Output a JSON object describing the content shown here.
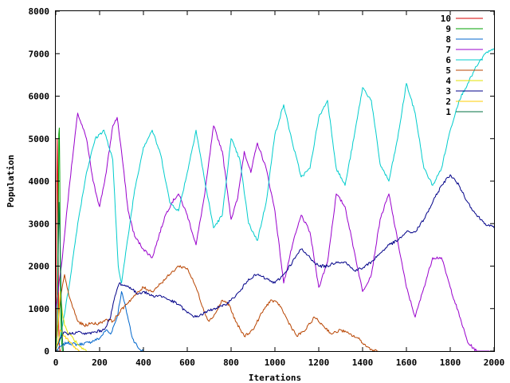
{
  "chart_data": {
    "type": "line",
    "title": "",
    "xlabel": "Iterations",
    "ylabel": "Population",
    "xlim": [
      0,
      2000
    ],
    "ylim": [
      0,
      8000
    ],
    "xticks": [
      0,
      200,
      400,
      600,
      800,
      1000,
      1200,
      1400,
      1600,
      1800,
      2000
    ],
    "yticks": [
      0,
      1000,
      2000,
      3000,
      4000,
      5000,
      6000,
      7000,
      8000
    ],
    "grid": false,
    "legend_position": "top-right",
    "series": [
      {
        "name": "10",
        "color": "#d40000",
        "x": [
          0,
          2,
          4,
          6,
          8,
          10,
          12,
          14,
          16,
          18,
          22
        ],
        "y": [
          300,
          1800,
          3800,
          5000,
          4300,
          2800,
          1400,
          500,
          150,
          40,
          0
        ]
      },
      {
        "name": "9",
        "color": "#00a000",
        "x": [
          0,
          4,
          8,
          12,
          14,
          16,
          18,
          20,
          22,
          26,
          30
        ],
        "y": [
          100,
          400,
          1500,
          3500,
          5100,
          5250,
          4200,
          2600,
          1100,
          250,
          0
        ]
      },
      {
        "name": "8",
        "color": "#0066cc",
        "x": [
          0,
          20,
          50,
          100,
          150,
          200,
          230,
          250,
          280,
          300,
          320,
          350,
          380,
          400
        ],
        "y": [
          0,
          100,
          200,
          150,
          200,
          300,
          500,
          400,
          800,
          1400,
          1000,
          300,
          50,
          0
        ]
      },
      {
        "name": "7",
        "color": "#9900cc",
        "x": [
          0,
          30,
          60,
          100,
          140,
          170,
          200,
          230,
          260,
          280,
          300,
          330,
          360,
          400,
          440,
          470,
          500,
          530,
          560,
          600,
          640,
          680,
          720,
          760,
          800,
          830,
          860,
          890,
          920,
          960,
          1000,
          1040,
          1080,
          1120,
          1160,
          1200,
          1240,
          1280,
          1320,
          1360,
          1400,
          1440,
          1480,
          1520,
          1560,
          1600,
          1640,
          1680,
          1720,
          1760,
          1800,
          1850,
          1880,
          1920,
          1950,
          1980
        ],
        "y": [
          1000,
          2200,
          3800,
          5600,
          5000,
          4000,
          3400,
          4200,
          5300,
          5500,
          4700,
          3300,
          2700,
          2400,
          2200,
          2700,
          3200,
          3500,
          3700,
          3200,
          2500,
          3700,
          5300,
          4700,
          3100,
          3600,
          4700,
          4200,
          4900,
          4300,
          3300,
          1600,
          2500,
          3200,
          2800,
          1500,
          2100,
          3700,
          3400,
          2400,
          1400,
          1800,
          3100,
          3700,
          2600,
          1500,
          800,
          1500,
          2200,
          2200,
          1500,
          700,
          200,
          0,
          0,
          0
        ]
      },
      {
        "name": "6",
        "color": "#00cccc",
        "x": [
          0,
          20,
          60,
          100,
          140,
          180,
          220,
          260,
          285,
          300,
          330,
          360,
          400,
          440,
          480,
          520,
          560,
          600,
          640,
          680,
          720,
          760,
          800,
          840,
          880,
          920,
          960,
          1000,
          1040,
          1080,
          1120,
          1160,
          1200,
          1240,
          1280,
          1320,
          1360,
          1400,
          1440,
          1480,
          1520,
          1560,
          1600,
          1640,
          1680,
          1720,
          1760,
          1800,
          1840,
          1880,
          1920,
          1960,
          2000
        ],
        "y": [
          0,
          300,
          1500,
          3000,
          4200,
          5000,
          5200,
          4500,
          2000,
          1600,
          2700,
          3800,
          4800,
          5200,
          4600,
          3500,
          3300,
          4200,
          5200,
          4000,
          2900,
          3200,
          5000,
          4500,
          3000,
          2600,
          3500,
          5100,
          5800,
          4900,
          4100,
          4300,
          5500,
          5900,
          4300,
          3900,
          5000,
          6200,
          5900,
          4400,
          4000,
          5000,
          6300,
          5600,
          4300,
          3900,
          4300,
          5200,
          5900,
          6300,
          6700,
          7000,
          7100
        ]
      },
      {
        "name": "5",
        "color": "#b84400",
        "x": [
          0,
          20,
          40,
          60,
          80,
          100,
          130,
          160,
          200,
          230,
          260,
          290,
          320,
          360,
          400,
          440,
          480,
          520,
          560,
          600,
          640,
          680,
          700,
          730,
          760,
          790,
          820,
          860,
          900,
          940,
          980,
          1020,
          1060,
          1100,
          1140,
          1180,
          1220,
          1260,
          1300,
          1340,
          1380,
          1420,
          1450,
          1470
        ],
        "y": [
          0,
          1200,
          1800,
          1300,
          1000,
          700,
          600,
          650,
          650,
          750,
          700,
          900,
          1100,
          1300,
          1500,
          1400,
          1600,
          1800,
          2000,
          1950,
          1500,
          900,
          700,
          900,
          1200,
          1100,
          700,
          350,
          500,
          900,
          1200,
          1100,
          700,
          350,
          500,
          800,
          600,
          400,
          500,
          400,
          300,
          100,
          20,
          0
        ]
      },
      {
        "name": "4",
        "color": "#e0e000",
        "x": [
          0,
          10,
          20,
          30,
          40,
          60,
          80,
          100,
          120,
          140
        ],
        "y": [
          0,
          600,
          1400,
          900,
          600,
          400,
          300,
          150,
          50,
          0
        ]
      },
      {
        "name": "3",
        "color": "#000088",
        "x": [
          0,
          20,
          40,
          60,
          100,
          140,
          180,
          220,
          250,
          270,
          290,
          310,
          340,
          370,
          400,
          440,
          480,
          520,
          560,
          600,
          640,
          680,
          720,
          760,
          800,
          840,
          880,
          920,
          960,
          1000,
          1040,
          1080,
          1120,
          1160,
          1200,
          1240,
          1280,
          1320,
          1360,
          1400,
          1440,
          1480,
          1520,
          1560,
          1600,
          1640,
          1680,
          1720,
          1760,
          1800,
          1840,
          1880,
          1920,
          1960,
          2000
        ],
        "y": [
          0,
          300,
          450,
          400,
          450,
          400,
          450,
          500,
          800,
          1300,
          1600,
          1550,
          1500,
          1350,
          1400,
          1300,
          1300,
          1200,
          1100,
          900,
          800,
          900,
          1000,
          1050,
          1200,
          1400,
          1700,
          1800,
          1700,
          1600,
          1800,
          2100,
          2400,
          2200,
          2000,
          2000,
          2100,
          2100,
          1900,
          1950,
          2100,
          2300,
          2500,
          2600,
          2800,
          2800,
          3100,
          3500,
          3900,
          4150,
          3900,
          3500,
          3200,
          3000,
          2900
        ]
      },
      {
        "name": "2",
        "color": "#ffcc00",
        "x": [
          0,
          10,
          20,
          30,
          40,
          50,
          70,
          90,
          110
        ],
        "y": [
          0,
          200,
          500,
          400,
          350,
          300,
          200,
          50,
          0
        ]
      },
      {
        "name": "1",
        "color": "#007040",
        "x": [
          0,
          5,
          10,
          15,
          20,
          25,
          30,
          35
        ],
        "y": [
          0,
          500,
          2000,
          3500,
          2500,
          1200,
          300,
          0
        ]
      }
    ]
  }
}
